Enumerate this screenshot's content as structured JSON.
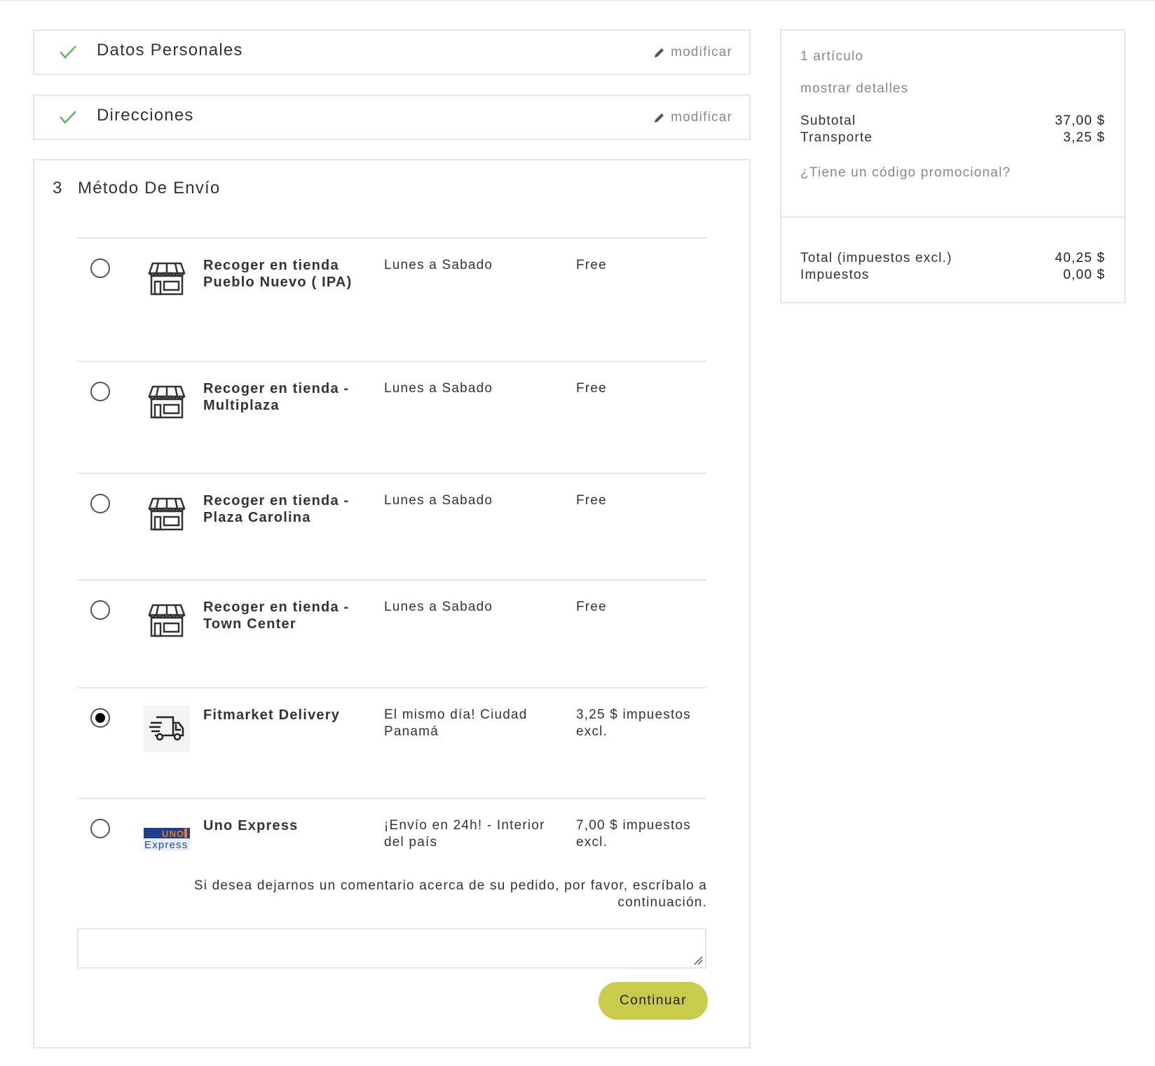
{
  "steps": [
    {
      "title": "Datos Personales",
      "edit_label": "modificar"
    },
    {
      "title": "Direcciones",
      "edit_label": "modificar"
    }
  ],
  "method": {
    "number": "3",
    "title": "Método De Envío",
    "options": [
      {
        "name": "Recoger en tienda Pueblo Nuevo ( IPA)",
        "desc": "Lunes a Sabado",
        "price": "Free",
        "icon": "store-icon",
        "selected": false
      },
      {
        "name": "Recoger en tienda - Multiplaza",
        "desc": "Lunes a Sabado",
        "price": "Free",
        "icon": "store-icon",
        "selected": false
      },
      {
        "name": "Recoger en tienda - Plaza Carolina",
        "desc": "Lunes a Sabado",
        "price": "Free",
        "icon": "store-icon",
        "selected": false
      },
      {
        "name": "Recoger en tienda - Town Center",
        "desc": "Lunes a Sabado",
        "price": "Free",
        "icon": "store-icon",
        "selected": false
      },
      {
        "name": "Fitmarket Delivery",
        "desc": "El mismo día! Ciudad Panamá",
        "price": "3,25 $ impuestos excl.",
        "icon": "delivery-truck-icon",
        "selected": true
      },
      {
        "name": "Uno Express",
        "desc": "¡Envío en 24h! - Interior del país",
        "price": "7,00 $ impuestos excl.",
        "icon": "uno-express-logo",
        "logo_text": "UNO Express",
        "selected": false
      }
    ],
    "comment_prompt": "Si desea dejarnos un comentario acerca de su pedido, por favor, escríbalo a continuación.",
    "comment_value": "",
    "continue_label": "Continuar"
  },
  "summary": {
    "items_count": "1 artículo",
    "show_details": "mostrar detalles",
    "subtotal_label": "Subtotal",
    "subtotal_value": "37,00 $",
    "shipping_label": "Transporte",
    "shipping_value": "3,25 $",
    "promo_link": "¿Tiene un código promocional?",
    "total_label": "Total (impuestos excl.)",
    "total_value": "40,25 $",
    "taxes_label": "Impuestos",
    "taxes_value": "0,00 $"
  },
  "colors": {
    "accent": "#c8cc4a",
    "check": "#5cb85c"
  }
}
